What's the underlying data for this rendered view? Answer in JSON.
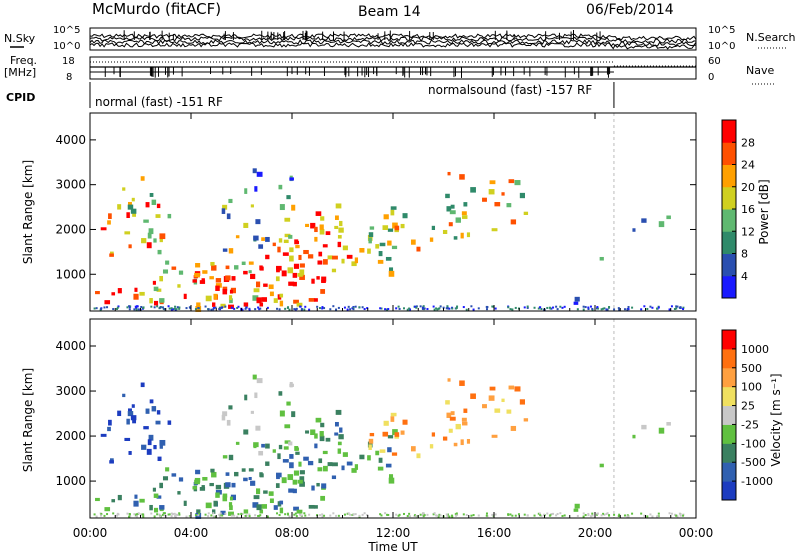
{
  "header": {
    "station": "McMurdo (fitACF)",
    "beam": "Beam 14",
    "date": "06/Feb/2014"
  },
  "top_panels": {
    "nsky_label": "N.Sky",
    "nsearch_label": "N.Search",
    "noise_ticks": [
      "10^5",
      "10^0"
    ],
    "freq_label_1": "Freq.",
    "freq_label_2": "[MHz]",
    "freq_ticks": [
      "18",
      "8"
    ],
    "nave_label": "Nave",
    "nave_ticks": [
      "60",
      "0"
    ],
    "cpid_label": "CPID",
    "cpid_1": "normal (fast) -151 RF",
    "cpid_2": "normalsound (fast) -157 RF",
    "cpid_switch_time_h": 20.75
  },
  "chart_data": [
    {
      "type": "heatmap",
      "title": "",
      "xlabel": "Time UT",
      "ylabel": "Slant Range [km]",
      "x_ticks": [
        "00:00",
        "04:00",
        "08:00",
        "12:00",
        "16:00",
        "20:00",
        "00:00"
      ],
      "xlim_hours": [
        0,
        24
      ],
      "ylim_km": [
        180,
        4600
      ],
      "y_ticks": [
        1000,
        2000,
        3000,
        4000
      ],
      "colorbar": {
        "label": "Power [dB]",
        "ticks": [
          4,
          8,
          12,
          16,
          20,
          24,
          28
        ],
        "colors": [
          "#1a1aff",
          "#2a4fb0",
          "#2f8a6a",
          "#5fb870",
          "#d0d020",
          "#ffa000",
          "#ff5000",
          "#ff0000"
        ]
      }
    },
    {
      "type": "heatmap",
      "title": "",
      "xlabel": "Time UT",
      "ylabel": "Slant Range [km]",
      "x_ticks": [
        "00:00",
        "04:00",
        "08:00",
        "12:00",
        "16:00",
        "20:00",
        "00:00"
      ],
      "xlim_hours": [
        0,
        24
      ],
      "ylim_km": [
        180,
        4600
      ],
      "y_ticks": [
        1000,
        2000,
        3000,
        4000
      ],
      "colorbar": {
        "label": "Velocity [m s⁻¹]",
        "ticks": [
          "1000",
          "500",
          "100",
          "25",
          "-25",
          "-100",
          "-500",
          "-1000"
        ],
        "colors": [
          "#1c3cc0",
          "#3060b0",
          "#3a8060",
          "#60c040",
          "#c8c8c8",
          "#f0e060",
          "#ffa040",
          "#ff7010",
          "#ff0000"
        ]
      }
    }
  ]
}
